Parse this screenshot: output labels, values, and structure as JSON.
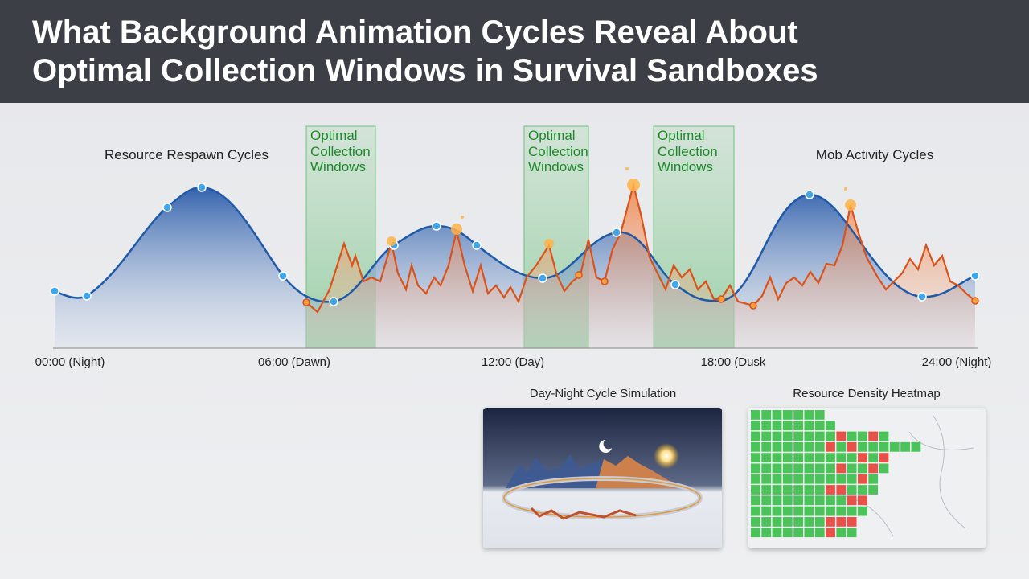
{
  "header": {
    "title_lines": [
      "What Background Animation Cycles Reveal About",
      "Optimal Collection Windows in Survival Sandboxes"
    ]
  },
  "main_chart": {
    "left_label": "Resource Respawn Cycles",
    "right_label": "Mob Activity Cycles",
    "windows": [
      "Optimal Collection Windows",
      "Optimal Collection Windows",
      "Optimal Collection Windows"
    ],
    "time_labels": [
      "00:00 (Night)",
      "06:00 (Dawn)",
      "12:00 (Day)",
      "18:00 (Dusk",
      "24:00 (Night)"
    ]
  },
  "panels": [
    {
      "title": "Day-Night Cycle Simulation"
    },
    {
      "title": "Resource Density Heatmap"
    }
  ]
}
